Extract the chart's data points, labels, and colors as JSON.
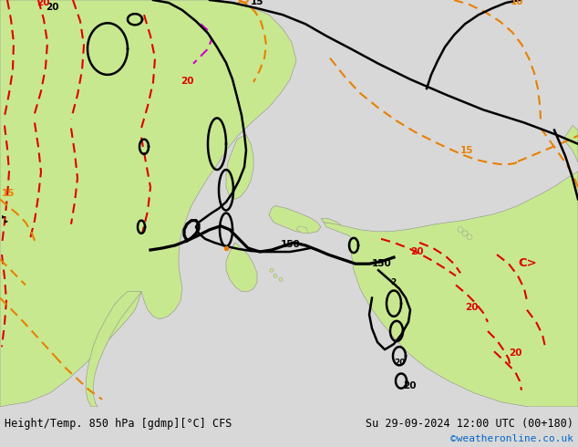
{
  "title_left": "Height/Temp. 850 hPa [gdmp][°C] CFS",
  "title_right": "Su 29-09-2024 12:00 UTC (00+180)",
  "credit": "©weatheronline.co.uk",
  "credit_color": "#0066cc",
  "bg_color": "#d8d8d8",
  "land_color": "#c8e890",
  "water_color": "#d8d8d8",
  "border_color": "#909090",
  "black_color": "#000000",
  "red_color": "#dd0000",
  "orange_color": "#e88000",
  "magenta_color": "#cc00cc",
  "label_fontsize": 7.5,
  "title_fontsize": 8.5,
  "credit_fontsize": 8.0,
  "figsize": [
    6.34,
    4.9
  ],
  "dpi": 100
}
